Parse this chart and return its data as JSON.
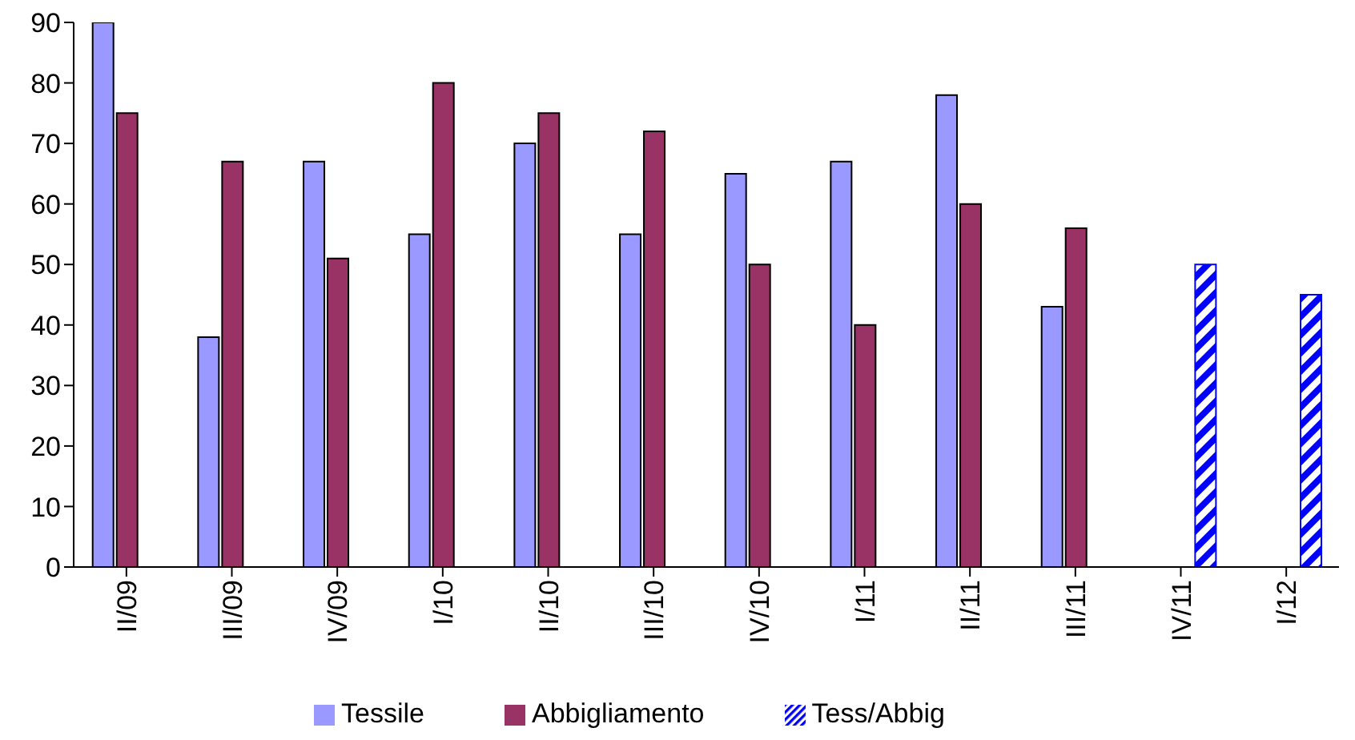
{
  "chart_data": {
    "type": "bar",
    "categories": [
      "II/09",
      "III/09",
      "IV/09",
      "I/10",
      "II/10",
      "III/10",
      "IV/10",
      "I/11",
      "II/11",
      "III/11",
      "IV/11",
      "I/12"
    ],
    "series": [
      {
        "name": "Tessile",
        "color": "#9999ff",
        "values": [
          90,
          38,
          67,
          55,
          70,
          55,
          65,
          67,
          78,
          43,
          null,
          null
        ]
      },
      {
        "name": "Abbigliamento",
        "color": "#993366",
        "values": [
          75,
          67,
          51,
          80,
          75,
          72,
          50,
          40,
          60,
          56,
          null,
          null
        ]
      },
      {
        "name": "Tess/Abbig",
        "color": "#0000ff",
        "values": [
          null,
          null,
          null,
          null,
          null,
          null,
          null,
          null,
          null,
          null,
          50,
          45
        ]
      }
    ],
    "ylim": [
      0,
      90
    ],
    "yticks": [
      0,
      10,
      20,
      30,
      40,
      50,
      60,
      70,
      80,
      90
    ],
    "grid": false,
    "legend": "bottom"
  }
}
